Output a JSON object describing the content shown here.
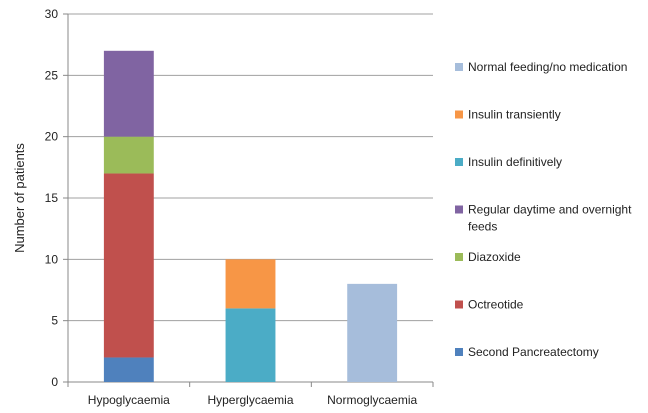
{
  "chart_data": {
    "type": "bar",
    "stacked": true,
    "title": "",
    "xlabel": "",
    "ylabel": "Number of patients",
    "ylim": [
      0,
      30
    ],
    "yticks": [
      0,
      5,
      10,
      15,
      20,
      25,
      30
    ],
    "grid": true,
    "legend_position": "right",
    "categories": [
      "Hypoglycaemia",
      "Hyperglycaemia",
      "Normoglycaemia"
    ],
    "series": [
      {
        "name": "Second Pancreatectomy",
        "color": "#4F81BD",
        "values": [
          2,
          0,
          0
        ]
      },
      {
        "name": "Octreotide",
        "color": "#C0504D",
        "values": [
          15,
          0,
          0
        ]
      },
      {
        "name": "Diazoxide",
        "color": "#9BBB59",
        "values": [
          3,
          0,
          0
        ]
      },
      {
        "name": "Regular daytime and overnight feeds",
        "color": "#8064A2",
        "values": [
          7,
          0,
          0
        ]
      },
      {
        "name": "Insulin definitively",
        "color": "#4BACC6",
        "values": [
          0,
          6,
          0
        ]
      },
      {
        "name": "Insulin transiently",
        "color": "#F79646",
        "values": [
          0,
          4,
          0
        ]
      },
      {
        "name": "Normal feeding/no medication",
        "color": "#A6BDDB",
        "values": [
          0,
          0,
          8
        ]
      }
    ],
    "legend_order": [
      "Normal feeding/no medication",
      "Insulin transiently",
      "Insulin definitively",
      "Regular daytime and overnight feeds",
      "Diazoxide",
      "Octreotide",
      "Second Pancreatectomy"
    ]
  }
}
